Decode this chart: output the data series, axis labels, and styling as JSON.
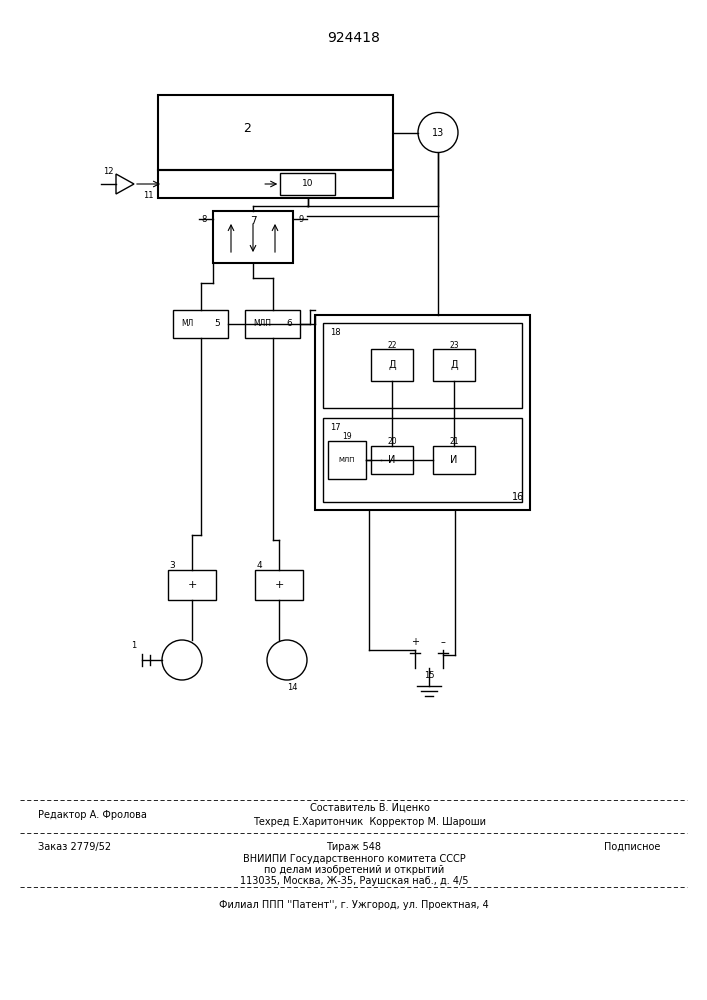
{
  "patent_number": "924418",
  "bg_color": "#ffffff",
  "line_color": "#000000",
  "footer_editor": "Редактор А. Фролова",
  "footer_sostavitel": "Составитель В. Иценко",
  "footer_tehred": "Техред Е.Харитончик  Корректор М. Шароши",
  "footer_order": "Заказ 2779/52",
  "footer_tirazh": "Тираж 548",
  "footer_podpisnoe": "Подписное",
  "footer_vnipi": "ВНИИПИ Государственного комитета СССР",
  "footer_po": "по делам изобретений и открытий",
  "footer_addr": "113035, Москва, Ж-35, Раушская наб., д. 4/5",
  "footer_filial": "Филиал ППП ''Патент'', г. Ужгород, ул. Проектная, 4"
}
